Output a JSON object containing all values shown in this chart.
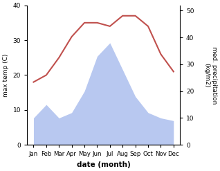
{
  "months": [
    "Jan",
    "Feb",
    "Mar",
    "Apr",
    "May",
    "Jun",
    "Jul",
    "Aug",
    "Sep",
    "Oct",
    "Nov",
    "Dec"
  ],
  "month_x": [
    0,
    1,
    2,
    3,
    4,
    5,
    6,
    7,
    8,
    9,
    10,
    11
  ],
  "temperature": [
    18,
    20,
    25,
    31,
    35,
    35,
    34,
    37,
    37,
    34,
    26,
    21
  ],
  "precipitation": [
    10,
    15,
    10,
    12,
    20,
    33,
    38,
    28,
    18,
    12,
    10,
    9
  ],
  "temp_color": "#c0504d",
  "precip_color": "#b8c8f0",
  "temp_ylim": [
    0,
    40
  ],
  "precip_ylim": [
    0,
    52
  ],
  "temp_ylabel": "max temp (C)",
  "precip_ylabel": "med. precipitation\n(kg/m2)",
  "xlabel": "date (month)",
  "temp_yticks": [
    0,
    10,
    20,
    30,
    40
  ],
  "precip_yticks": [
    0,
    10,
    20,
    30,
    40,
    50
  ],
  "background_color": "#ffffff"
}
